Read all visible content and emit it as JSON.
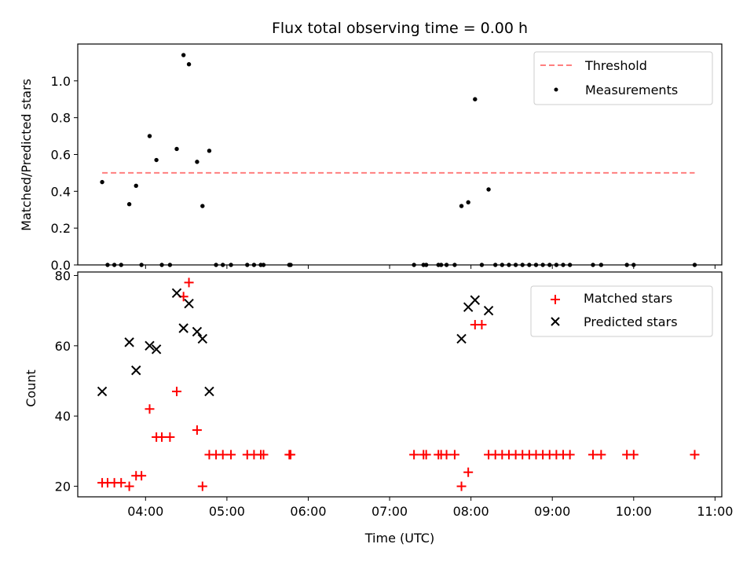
{
  "figure": {
    "title": "Flux total observing time = 0.00 h",
    "xlabel": "Time (UTC)"
  },
  "chart_data": [
    {
      "type": "scatter",
      "title": "Flux total observing time = 0.00 h",
      "ylabel": "Matched/Predicted stars",
      "xlim": [
        "03:10",
        "11:05"
      ],
      "ylim": [
        0,
        1.2
      ],
      "x_ticks": [
        "04:00",
        "05:00",
        "06:00",
        "07:00",
        "08:00",
        "09:00",
        "10:00",
        "11:00"
      ],
      "y_ticks": [
        "0.0",
        "0.2",
        "0.4",
        "0.6",
        "0.8",
        "1.0"
      ],
      "legend": [
        "Threshold",
        "Measurements"
      ],
      "legend_position": "upper right",
      "threshold": {
        "name": "Threshold",
        "value": 0.5,
        "x_start": "03:28",
        "x_end": "10:45",
        "color": "#ff7f7f",
        "style": "dashed"
      },
      "series": [
        {
          "name": "Measurements",
          "marker": "dot",
          "color": "#000000",
          "points": [
            {
              "x": "03:28",
              "y": 0.45
            },
            {
              "x": "03:32",
              "y": 0.0
            },
            {
              "x": "03:37",
              "y": 0.0
            },
            {
              "x": "03:42",
              "y": 0.0
            },
            {
              "x": "03:48",
              "y": 0.33
            },
            {
              "x": "03:53",
              "y": 0.43
            },
            {
              "x": "03:57",
              "y": 0.0
            },
            {
              "x": "04:03",
              "y": 0.7
            },
            {
              "x": "04:08",
              "y": 0.57
            },
            {
              "x": "04:12",
              "y": 0.0
            },
            {
              "x": "04:18",
              "y": 0.0
            },
            {
              "x": "04:23",
              "y": 0.63
            },
            {
              "x": "04:28",
              "y": 1.14
            },
            {
              "x": "04:32",
              "y": 1.09
            },
            {
              "x": "04:38",
              "y": 0.56
            },
            {
              "x": "04:42",
              "y": 0.32
            },
            {
              "x": "04:47",
              "y": 0.62
            },
            {
              "x": "04:52",
              "y": 0.0
            },
            {
              "x": "04:57",
              "y": 0.0
            },
            {
              "x": "05:03",
              "y": 0.0
            },
            {
              "x": "05:15",
              "y": 0.0
            },
            {
              "x": "05:20",
              "y": 0.0
            },
            {
              "x": "05:25",
              "y": 0.0
            },
            {
              "x": "05:27",
              "y": 0.0
            },
            {
              "x": "05:46",
              "y": 0.0
            },
            {
              "x": "05:47",
              "y": 0.0
            },
            {
              "x": "07:18",
              "y": 0.0
            },
            {
              "x": "07:25",
              "y": 0.0
            },
            {
              "x": "07:27",
              "y": 0.0
            },
            {
              "x": "07:36",
              "y": 0.0
            },
            {
              "x": "07:38",
              "y": 0.0
            },
            {
              "x": "07:42",
              "y": 0.0
            },
            {
              "x": "07:48",
              "y": 0.0
            },
            {
              "x": "07:53",
              "y": 0.32
            },
            {
              "x": "07:58",
              "y": 0.34
            },
            {
              "x": "08:03",
              "y": 0.9
            },
            {
              "x": "08:08",
              "y": 0.0
            },
            {
              "x": "08:13",
              "y": 0.41
            },
            {
              "x": "08:18",
              "y": 0.0
            },
            {
              "x": "08:23",
              "y": 0.0
            },
            {
              "x": "08:28",
              "y": 0.0
            },
            {
              "x": "08:33",
              "y": 0.0
            },
            {
              "x": "08:38",
              "y": 0.0
            },
            {
              "x": "08:43",
              "y": 0.0
            },
            {
              "x": "08:48",
              "y": 0.0
            },
            {
              "x": "08:53",
              "y": 0.0
            },
            {
              "x": "08:58",
              "y": 0.0
            },
            {
              "x": "09:03",
              "y": 0.0
            },
            {
              "x": "09:08",
              "y": 0.0
            },
            {
              "x": "09:13",
              "y": 0.0
            },
            {
              "x": "09:30",
              "y": 0.0
            },
            {
              "x": "09:36",
              "y": 0.0
            },
            {
              "x": "09:55",
              "y": 0.0
            },
            {
              "x": "10:00",
              "y": 0.0
            },
            {
              "x": "10:45",
              "y": 0.0
            }
          ]
        }
      ]
    },
    {
      "type": "scatter",
      "ylabel": "Count",
      "xlabel": "Time (UTC)",
      "xlim": [
        "03:10",
        "11:05"
      ],
      "ylim": [
        17,
        81
      ],
      "x_ticks": [
        "04:00",
        "05:00",
        "06:00",
        "07:00",
        "08:00",
        "09:00",
        "10:00",
        "11:00"
      ],
      "y_ticks": [
        "20",
        "40",
        "60",
        "80"
      ],
      "legend": [
        "Matched stars",
        "Predicted stars"
      ],
      "legend_position": "upper right",
      "series": [
        {
          "name": "Matched stars",
          "marker": "plus",
          "color": "#ff0000",
          "points": [
            {
              "x": "03:28",
              "y": 21
            },
            {
              "x": "03:32",
              "y": 21
            },
            {
              "x": "03:37",
              "y": 21
            },
            {
              "x": "03:42",
              "y": 21
            },
            {
              "x": "03:48",
              "y": 20
            },
            {
              "x": "03:53",
              "y": 23
            },
            {
              "x": "03:57",
              "y": 23
            },
            {
              "x": "04:03",
              "y": 42
            },
            {
              "x": "04:08",
              "y": 34
            },
            {
              "x": "04:12",
              "y": 34
            },
            {
              "x": "04:18",
              "y": 34
            },
            {
              "x": "04:23",
              "y": 47
            },
            {
              "x": "04:28",
              "y": 74
            },
            {
              "x": "04:32",
              "y": 78
            },
            {
              "x": "04:38",
              "y": 36
            },
            {
              "x": "04:42",
              "y": 20
            },
            {
              "x": "04:47",
              "y": 29
            },
            {
              "x": "04:52",
              "y": 29
            },
            {
              "x": "04:57",
              "y": 29
            },
            {
              "x": "05:03",
              "y": 29
            },
            {
              "x": "05:15",
              "y": 29
            },
            {
              "x": "05:20",
              "y": 29
            },
            {
              "x": "05:25",
              "y": 29
            },
            {
              "x": "05:27",
              "y": 29
            },
            {
              "x": "05:46",
              "y": 29
            },
            {
              "x": "05:47",
              "y": 29
            },
            {
              "x": "07:18",
              "y": 29
            },
            {
              "x": "07:25",
              "y": 29
            },
            {
              "x": "07:27",
              "y": 29
            },
            {
              "x": "07:36",
              "y": 29
            },
            {
              "x": "07:38",
              "y": 29
            },
            {
              "x": "07:42",
              "y": 29
            },
            {
              "x": "07:48",
              "y": 29
            },
            {
              "x": "07:53",
              "y": 20
            },
            {
              "x": "07:58",
              "y": 24
            },
            {
              "x": "08:03",
              "y": 66
            },
            {
              "x": "08:08",
              "y": 66
            },
            {
              "x": "08:13",
              "y": 29
            },
            {
              "x": "08:18",
              "y": 29
            },
            {
              "x": "08:23",
              "y": 29
            },
            {
              "x": "08:28",
              "y": 29
            },
            {
              "x": "08:33",
              "y": 29
            },
            {
              "x": "08:38",
              "y": 29
            },
            {
              "x": "08:43",
              "y": 29
            },
            {
              "x": "08:48",
              "y": 29
            },
            {
              "x": "08:53",
              "y": 29
            },
            {
              "x": "08:58",
              "y": 29
            },
            {
              "x": "09:03",
              "y": 29
            },
            {
              "x": "09:08",
              "y": 29
            },
            {
              "x": "09:13",
              "y": 29
            },
            {
              "x": "09:30",
              "y": 29
            },
            {
              "x": "09:36",
              "y": 29
            },
            {
              "x": "09:55",
              "y": 29
            },
            {
              "x": "10:00",
              "y": 29
            },
            {
              "x": "10:45",
              "y": 29
            }
          ]
        },
        {
          "name": "Predicted stars",
          "marker": "x",
          "color": "#000000",
          "points": [
            {
              "x": "03:28",
              "y": 47
            },
            {
              "x": "03:48",
              "y": 61
            },
            {
              "x": "03:53",
              "y": 53
            },
            {
              "x": "04:03",
              "y": 60
            },
            {
              "x": "04:08",
              "y": 59
            },
            {
              "x": "04:23",
              "y": 75
            },
            {
              "x": "04:28",
              "y": 65
            },
            {
              "x": "04:32",
              "y": 72
            },
            {
              "x": "04:38",
              "y": 64
            },
            {
              "x": "04:42",
              "y": 62
            },
            {
              "x": "04:47",
              "y": 47
            },
            {
              "x": "07:53",
              "y": 62
            },
            {
              "x": "07:58",
              "y": 71
            },
            {
              "x": "08:03",
              "y": 73
            },
            {
              "x": "08:13",
              "y": 70
            }
          ]
        }
      ]
    }
  ]
}
